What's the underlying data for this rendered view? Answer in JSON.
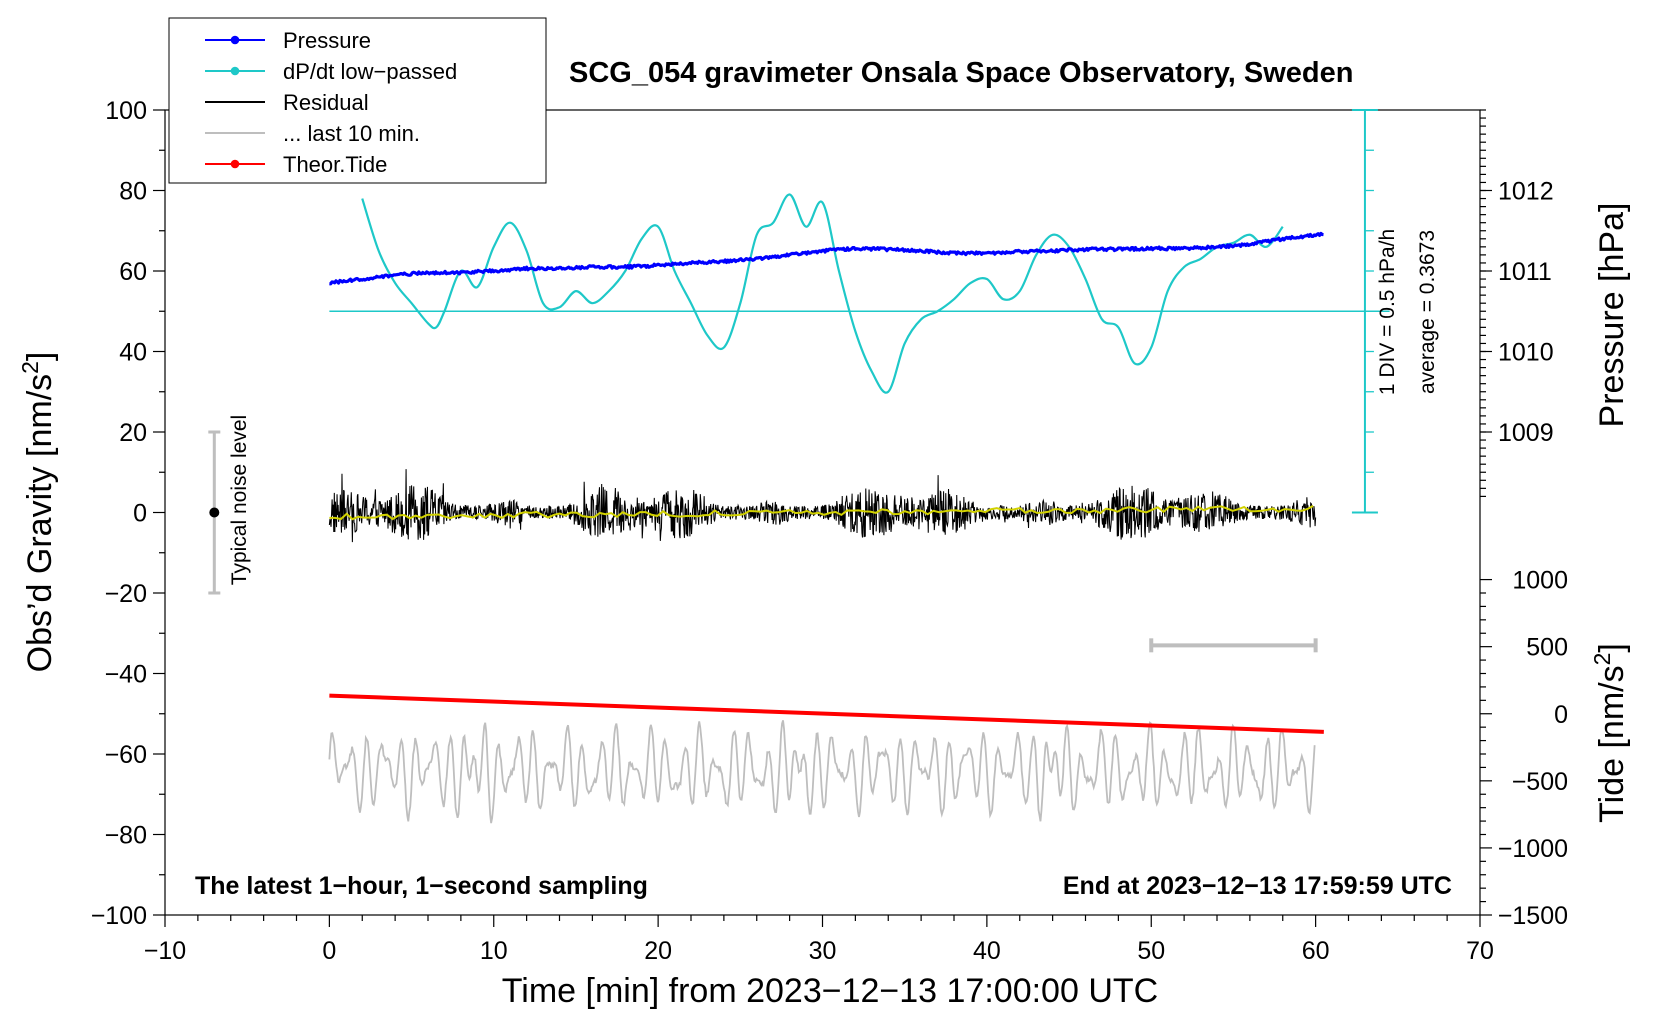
{
  "chart_data": {
    "type": "line",
    "title": "SCG_054 gravimeter Onsala Space Observatory, Sweden",
    "xlabel": "Time [min] from 2023−12−13 17:00:00 UTC",
    "ylabel_left_main": "Obs’d Gravity [nm/s",
    "ylabel_left_sup": "2",
    "ylabel_left_close": "]",
    "ylabel_right_pressure": "Pressure [hPa]",
    "ylabel_right_tide_main": "Tide [nm/s",
    "ylabel_right_tide_sup": "2",
    "ylabel_right_tide_close": "]",
    "xlim": [
      -10,
      70
    ],
    "ylim_left": [
      -100,
      100
    ],
    "x_ticks": [
      "−10",
      "0",
      "10",
      "20",
      "30",
      "40",
      "50",
      "60",
      "70"
    ],
    "y_ticks_left": [
      "100",
      "80",
      "60",
      "40",
      "20",
      "0",
      "−20",
      "−40",
      "−60",
      "−80",
      "−100"
    ],
    "pressure_ticks": [
      "1012",
      "1011",
      "1010",
      "1009"
    ],
    "tide_ticks": [
      "1000",
      "500",
      "0",
      "−500",
      "−1000",
      "−1500"
    ],
    "legend": [
      {
        "label": "Pressure",
        "color": "#0000ff",
        "marker": true
      },
      {
        "label": "dP/dt low−passed",
        "color": "#1ec8c8",
        "marker": true
      },
      {
        "label": "Residual",
        "color": "#000000",
        "marker": false
      },
      {
        "label": "... last 10 min.",
        "color": "#bebebe",
        "marker": false
      },
      {
        "label": "Theor.Tide",
        "color": "#ff0000",
        "marker": true
      }
    ],
    "annotations": {
      "noise_label": "Typical noise level",
      "scale_div": "1 DIV = 0.5 hPa/h",
      "scale_avg": "average = 0.3673",
      "bottom_left": "The latest 1−hour, 1−second sampling",
      "bottom_right": "End at 2023−12−13 17:59:59 UTC"
    },
    "pressure_axis_hpa": {
      "ref_value": 1012,
      "ref_left_units": 80,
      "left_units_per_hpa": 20
    },
    "tide_axis_nms2": {
      "ref_value": 0,
      "ref_left_units": -50,
      "left_units_per_500": 16.6667
    },
    "series": [
      {
        "name": "Pressure",
        "axis": "pressure_hpa",
        "color": "#0000ff",
        "x": [
          0,
          2,
          4,
          6,
          8,
          10,
          12,
          14,
          16,
          18,
          20,
          22,
          24,
          26,
          28,
          30,
          32,
          34,
          36,
          38,
          40,
          42,
          44,
          46,
          48,
          50,
          52,
          54,
          56,
          58,
          60
        ],
        "y": [
          1010.85,
          1010.9,
          1010.95,
          1010.98,
          1010.98,
          1011.0,
          1011.03,
          1011.03,
          1011.05,
          1011.05,
          1011.07,
          1011.1,
          1011.12,
          1011.15,
          1011.2,
          1011.25,
          1011.28,
          1011.27,
          1011.25,
          1011.22,
          1011.22,
          1011.24,
          1011.25,
          1011.27,
          1011.27,
          1011.28,
          1011.28,
          1011.3,
          1011.33,
          1011.4,
          1011.45
        ]
      },
      {
        "name": "dP/dt low-passed",
        "axis": "left_units",
        "color": "#1ec8c8",
        "baseline": 50,
        "x": [
          2,
          3,
          4,
          5,
          6,
          6.5,
          7,
          8,
          9,
          10,
          11,
          12,
          13,
          14,
          15,
          16,
          17,
          18,
          19,
          20,
          21,
          22,
          23,
          24,
          25,
          26,
          27,
          28,
          29,
          30,
          31,
          32,
          33,
          34,
          35,
          36,
          37,
          38,
          39,
          40,
          41,
          42,
          43,
          44,
          45,
          46,
          47,
          48,
          49,
          50,
          51,
          52,
          53,
          54,
          55,
          56,
          57,
          58
        ],
        "y": [
          78,
          65,
          57,
          52,
          47,
          46,
          50,
          60,
          56,
          66,
          72,
          65,
          52,
          51,
          55,
          52,
          55,
          60,
          68,
          71,
          60,
          52,
          44,
          41,
          52,
          69,
          72,
          79,
          71,
          77,
          60,
          45,
          35,
          30,
          42,
          48,
          50,
          53,
          57,
          58,
          53,
          55,
          64,
          69,
          66,
          58,
          48,
          46,
          37,
          41,
          55,
          61,
          63,
          66,
          67,
          69,
          66,
          71
        ]
      },
      {
        "name": "Residual",
        "axis": "left_units",
        "color": "#000000",
        "x_start": 0,
        "x_end": 60,
        "envelope_min": -15,
        "envelope_max": 15,
        "smoothed_color": "#d2d200",
        "smoothed_level_start": -1,
        "smoothed_level_end": 1
      },
      {
        "name": "... last 10 min.",
        "axis": "left_units",
        "color": "#bebebe",
        "x_start": 0,
        "x_end": 60,
        "center": -64,
        "envelope_min": -78,
        "envelope_max": -48
      },
      {
        "name": "Theor.Tide",
        "axis": "left_units",
        "color": "#ff0000",
        "x": [
          0,
          60.5
        ],
        "y": [
          -45.5,
          -54.5
        ]
      }
    ],
    "noise_bar": {
      "x": -7,
      "center": 0,
      "low": -20,
      "high": 20
    },
    "time_window_bar": {
      "x_from": 50,
      "x_to": 60,
      "y": -33
    }
  }
}
